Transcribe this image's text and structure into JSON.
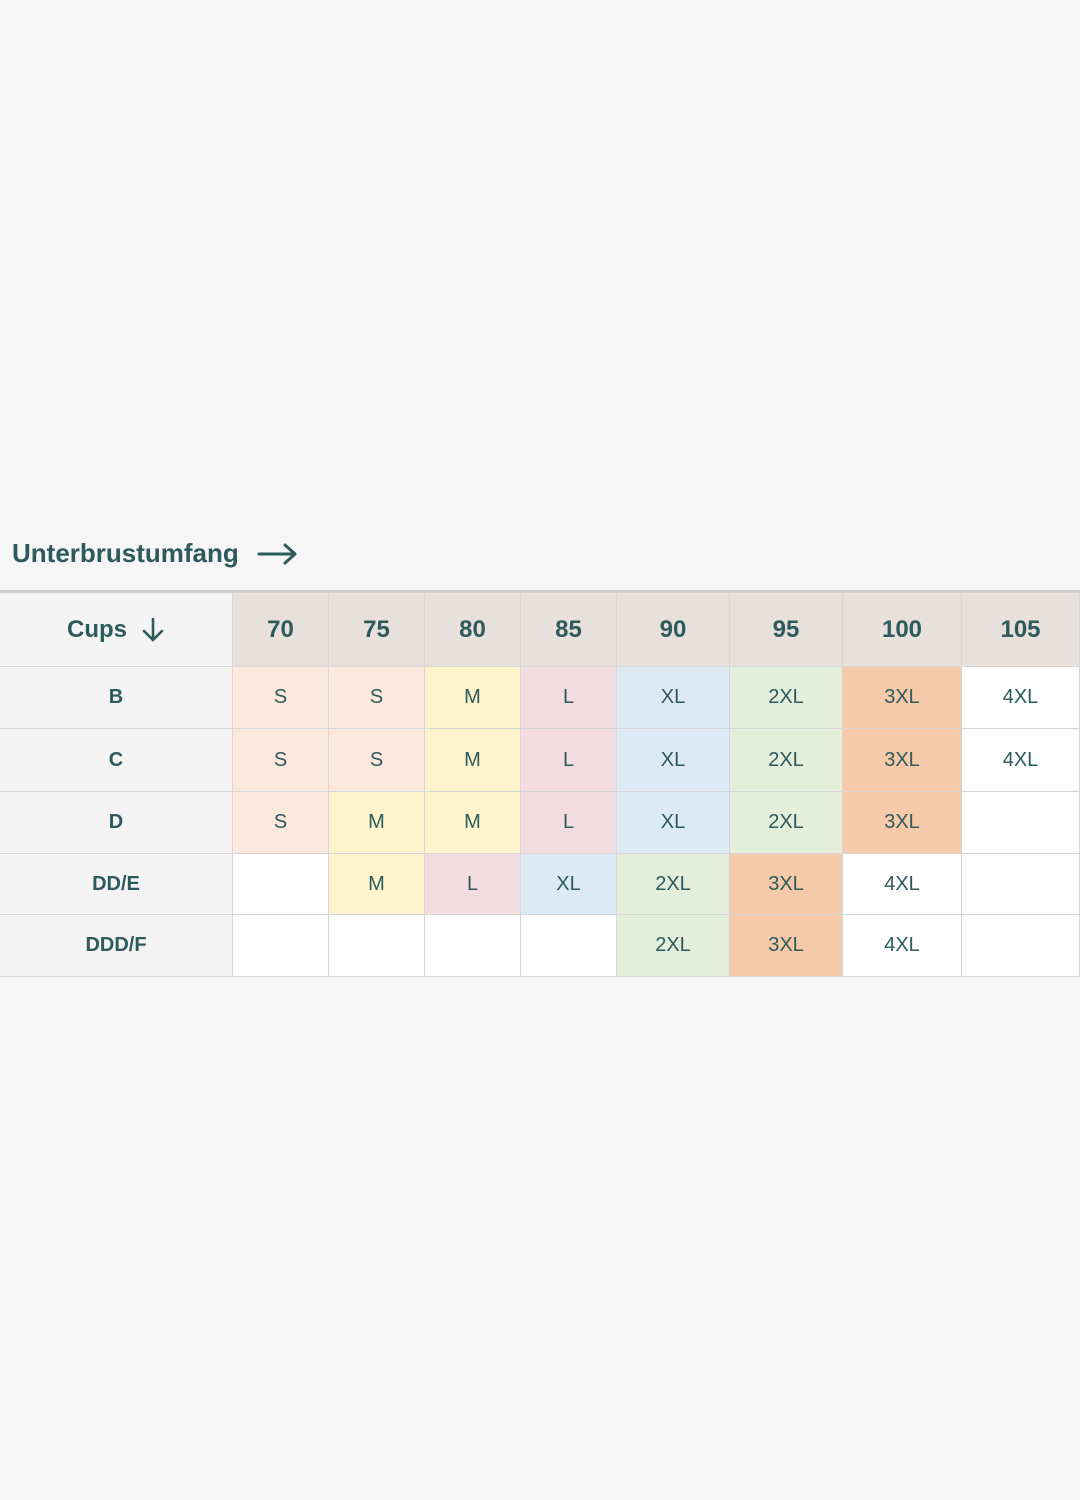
{
  "header": {
    "title": "Unterbrustumfang"
  },
  "table": {
    "corner": "Cups",
    "columns": [
      "70",
      "75",
      "80",
      "85",
      "90",
      "95",
      "100",
      "105"
    ],
    "rows": [
      {
        "cup": "B",
        "cells": [
          "S",
          "S",
          "M",
          "L",
          "XL",
          "2XL",
          "3XL",
          "4XL"
        ]
      },
      {
        "cup": "C",
        "cells": [
          "S",
          "S",
          "M",
          "L",
          "XL",
          "2XL",
          "3XL",
          "4XL"
        ]
      },
      {
        "cup": "D",
        "cells": [
          "S",
          "M",
          "M",
          "L",
          "XL",
          "2XL",
          "3XL",
          null
        ]
      },
      {
        "cup": "DD/E",
        "cells": [
          null,
          "M",
          "L",
          "XL",
          "2XL",
          "3XL",
          "4XL",
          null
        ]
      },
      {
        "cup": "DDD/F",
        "cells": [
          null,
          null,
          null,
          null,
          "2XL",
          "3XL",
          "4XL",
          null
        ]
      }
    ],
    "size_colors": {
      "S": "#fce8dc",
      "M": "#fdf3cc",
      "L": "#f3dde0",
      "XL": "#dde9f4",
      "2XL": "#e3efda",
      "3XL": "#f6c9a8",
      "4XL": "#ffffff"
    }
  }
}
